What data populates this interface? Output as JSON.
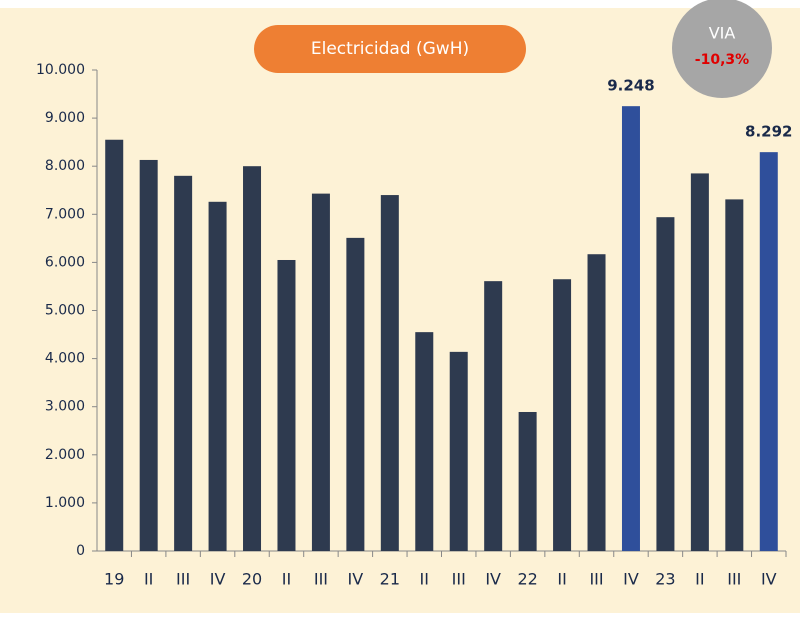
{
  "chart_data": {
    "type": "bar",
    "title": "Electricidad (GwH)",
    "badge": {
      "label": "VIA",
      "value": "-10,3%"
    },
    "categories": [
      "19",
      "II",
      "III",
      "IV",
      "20",
      "II",
      "III",
      "IV",
      "21",
      "II",
      "III",
      "IV",
      "22",
      "II",
      "III",
      "IV",
      "23",
      "II",
      "III",
      "IV"
    ],
    "values": [
      8550,
      8130,
      7800,
      7260,
      8000,
      6050,
      7430,
      6510,
      7400,
      4550,
      4140,
      5610,
      2890,
      5650,
      6170,
      9248,
      6940,
      7850,
      7310,
      8292
    ],
    "value_labels": [
      null,
      null,
      null,
      null,
      null,
      null,
      null,
      null,
      null,
      null,
      null,
      null,
      null,
      null,
      null,
      "9.248",
      null,
      null,
      null,
      "8.292"
    ],
    "colors": [
      "#2e3a4f",
      "#2e3a4f",
      "#2e3a4f",
      "#2e3a4f",
      "#2e3a4f",
      "#2e3a4f",
      "#2e3a4f",
      "#2e3a4f",
      "#2e3a4f",
      "#2e3a4f",
      "#2e3a4f",
      "#2e3a4f",
      "#2e3a4f",
      "#2e3a4f",
      "#2e3a4f",
      "#2f4f9b",
      "#2e3a4f",
      "#2e3a4f",
      "#2e3a4f",
      "#2f4f9b"
    ],
    "ylim": [
      0,
      10000
    ],
    "yticks": [
      0,
      {
        "value": 1000,
        "label": "1.000"
      },
      {
        "value": 2000,
        "label": "2.000"
      },
      {
        "value": 3000,
        "label": "3.000"
      },
      {
        "value": 4000,
        "label": "4.000"
      },
      {
        "value": 5000,
        "label": "5.000"
      },
      {
        "value": 6000,
        "label": "6.000"
      },
      {
        "value": 7000,
        "label": "7.000"
      },
      {
        "value": 8000,
        "label": "8.000"
      },
      {
        "value": 9000,
        "label": "9.000"
      },
      {
        "value": 10000,
        "label": "10.000"
      }
    ],
    "grid": false
  }
}
